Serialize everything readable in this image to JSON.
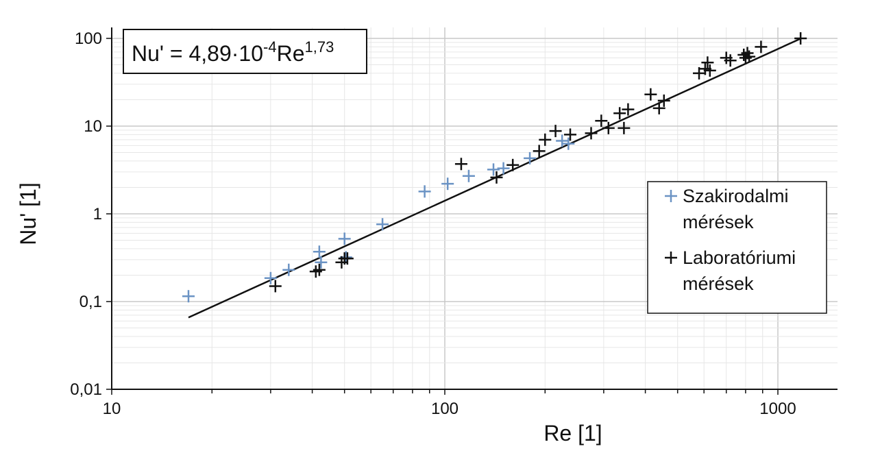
{
  "chart_data": {
    "type": "scatter",
    "title": "",
    "xlabel": "Re [1]",
    "ylabel": "Nu' [1]",
    "x_scale": "log",
    "y_scale": "log",
    "xlim": [
      10,
      1600
    ],
    "ylim": [
      0.01,
      150
    ],
    "x_ticks": [
      {
        "value": 10,
        "label": "10"
      },
      {
        "value": 100,
        "label": "100"
      },
      {
        "value": 1000,
        "label": "1000"
      }
    ],
    "y_ticks": [
      {
        "value": 0.01,
        "label": "0,01"
      },
      {
        "value": 0.1,
        "label": "0,1"
      },
      {
        "value": 1,
        "label": "1"
      },
      {
        "value": 10,
        "label": "10"
      },
      {
        "value": 100,
        "label": "100"
      }
    ],
    "grid": true,
    "legend_position": "right",
    "annotation": {
      "base": "Nu' = 4,89·10",
      "exp1": "-4",
      "mid": "Re",
      "exp2": "1,73"
    },
    "series": [
      {
        "name": "Szakirodalmi mérések",
        "legend_lines": [
          "Szakirodalmi",
          "mérések"
        ],
        "color": "#6b93c4",
        "marker": "plus",
        "points": [
          [
            17,
            0.115
          ],
          [
            30,
            0.185
          ],
          [
            34,
            0.23
          ],
          [
            42,
            0.37
          ],
          [
            42.5,
            0.28
          ],
          [
            50,
            0.52
          ],
          [
            50.5,
            0.32
          ],
          [
            65,
            0.76
          ],
          [
            87,
            1.8
          ],
          [
            102,
            2.2
          ],
          [
            118,
            2.7
          ],
          [
            140,
            3.2
          ],
          [
            150,
            3.3
          ],
          [
            180,
            4.3
          ],
          [
            225,
            6.8
          ],
          [
            235,
            6.3
          ]
        ]
      },
      {
        "name": "Laboratóriumi mérések",
        "legend_lines": [
          "Laboratóriumi",
          "mérések"
        ],
        "color": "#111111",
        "marker": "plus",
        "points": [
          [
            31,
            0.15
          ],
          [
            41,
            0.22
          ],
          [
            42,
            0.23
          ],
          [
            49,
            0.28
          ],
          [
            50,
            0.31
          ],
          [
            51,
            0.31
          ],
          [
            112,
            3.7
          ],
          [
            143,
            2.6
          ],
          [
            160,
            3.6
          ],
          [
            192,
            5.2
          ],
          [
            200,
            7.0
          ],
          [
            215,
            8.8
          ],
          [
            238,
            8.0
          ],
          [
            275,
            8.3
          ],
          [
            295,
            11.5
          ],
          [
            310,
            9.5
          ],
          [
            335,
            14.0
          ],
          [
            345,
            9.5
          ],
          [
            355,
            15.5
          ],
          [
            415,
            23.0
          ],
          [
            440,
            16.0
          ],
          [
            455,
            19.5
          ],
          [
            580,
            40.0
          ],
          [
            605,
            45.0
          ],
          [
            615,
            53.0
          ],
          [
            625,
            43.0
          ],
          [
            700,
            60.0
          ],
          [
            720,
            56.0
          ],
          [
            790,
            65.0
          ],
          [
            800,
            60.0
          ],
          [
            810,
            68.0
          ],
          [
            820,
            62.0
          ],
          [
            890,
            80.0
          ],
          [
            1170,
            100.0
          ]
        ]
      }
    ],
    "fit_line": {
      "label": "Nu' = 4,89·10-4Re1,73",
      "coefficient": 0.000489,
      "exponent": 1.73,
      "x_range": [
        17,
        1170
      ]
    }
  }
}
